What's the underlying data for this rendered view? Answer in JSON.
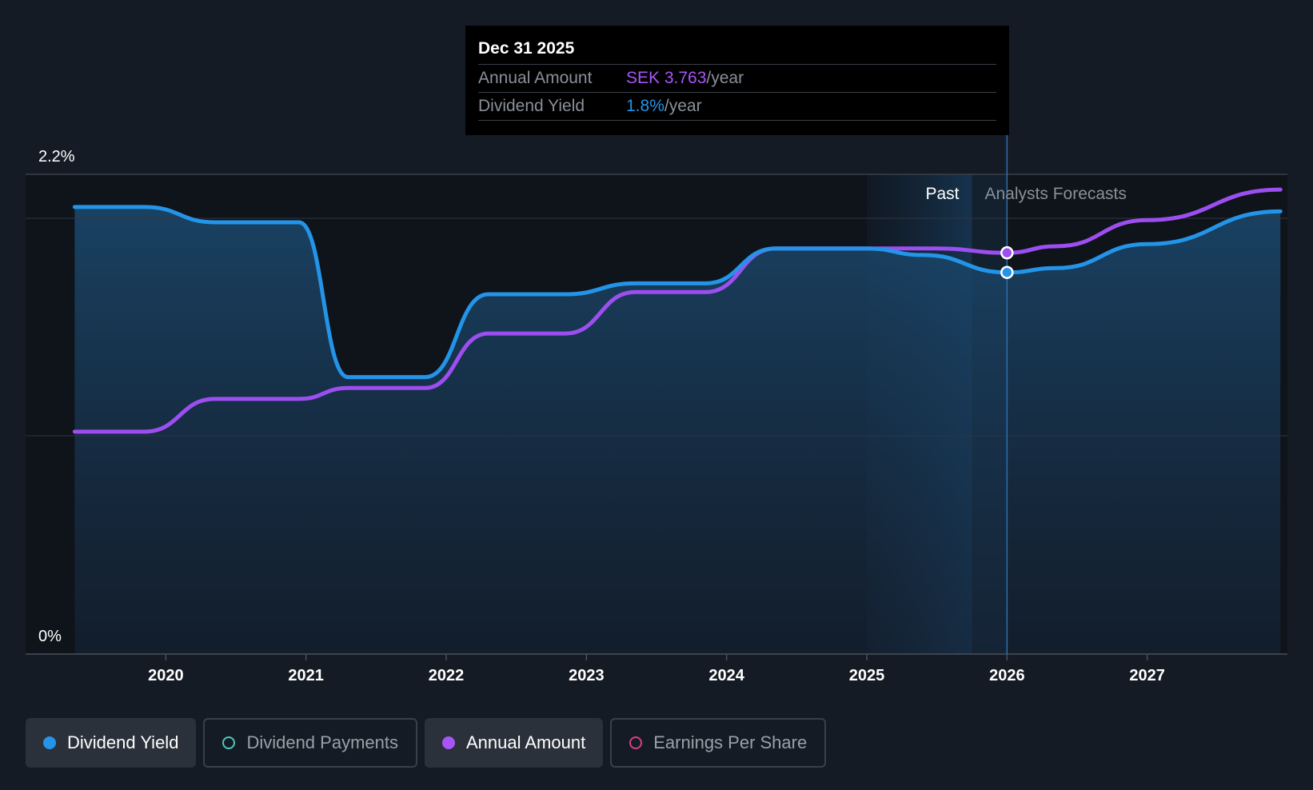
{
  "chart_data": {
    "type": "line",
    "y_axis": {
      "min_label": "0%",
      "max_label": "2.2%",
      "ylim": [
        0,
        2.2
      ]
    },
    "x_axis": {
      "ticks": [
        "2020",
        "2021",
        "2022",
        "2023",
        "2024",
        "2025",
        "2026",
        "2027"
      ],
      "xlim": [
        2019.0,
        2028.0
      ]
    },
    "regions": {
      "past_label": "Past",
      "forecast_label": "Analysts Forecasts",
      "past_end": 2025.75,
      "tooltip_at": 2026.0
    },
    "series": [
      {
        "name": "Dividend Yield",
        "color": "#2394e8",
        "points": [
          [
            2019.35,
            2.05
          ],
          [
            2019.85,
            2.05
          ],
          [
            2020.35,
            1.98
          ],
          [
            2020.95,
            1.98
          ],
          [
            2021.3,
            1.27
          ],
          [
            2021.85,
            1.27
          ],
          [
            2022.3,
            1.65
          ],
          [
            2022.85,
            1.65
          ],
          [
            2023.35,
            1.7
          ],
          [
            2023.85,
            1.7
          ],
          [
            2024.35,
            1.86
          ],
          [
            2025.0,
            1.86
          ],
          [
            2025.4,
            1.83
          ],
          [
            2026.0,
            1.75
          ],
          [
            2026.35,
            1.77
          ],
          [
            2027.0,
            1.88
          ],
          [
            2027.95,
            2.03
          ]
        ]
      },
      {
        "name": "Annual Amount",
        "color": "#9d4ef0",
        "points": [
          [
            2019.35,
            1.02
          ],
          [
            2019.85,
            1.02
          ],
          [
            2020.35,
            1.17
          ],
          [
            2020.95,
            1.17
          ],
          [
            2021.3,
            1.22
          ],
          [
            2021.85,
            1.22
          ],
          [
            2022.3,
            1.47
          ],
          [
            2022.85,
            1.47
          ],
          [
            2023.35,
            1.66
          ],
          [
            2023.85,
            1.66
          ],
          [
            2024.35,
            1.86
          ],
          [
            2025.0,
            1.86
          ],
          [
            2025.5,
            1.86
          ],
          [
            2026.0,
            1.84
          ],
          [
            2026.35,
            1.87
          ],
          [
            2027.0,
            1.99
          ],
          [
            2027.95,
            2.13
          ]
        ]
      }
    ]
  },
  "tooltip": {
    "date": "Dec 31 2025",
    "rows": [
      {
        "label": "Annual Amount",
        "value": "SEK 3.763",
        "unit": "/year",
        "color": "#a855f7"
      },
      {
        "label": "Dividend Yield",
        "value": "1.8%",
        "unit": "/year",
        "color": "#2394e8"
      }
    ]
  },
  "legend": [
    {
      "label": "Dividend Yield",
      "color": "#2394e8",
      "active": true,
      "filled": true
    },
    {
      "label": "Dividend Payments",
      "color": "#4fc7bd",
      "active": false,
      "filled": false
    },
    {
      "label": "Annual Amount",
      "color": "#a855f7",
      "active": true,
      "filled": true
    },
    {
      "label": "Earnings Per Share",
      "color": "#d63f86",
      "active": false,
      "filled": false
    }
  ]
}
